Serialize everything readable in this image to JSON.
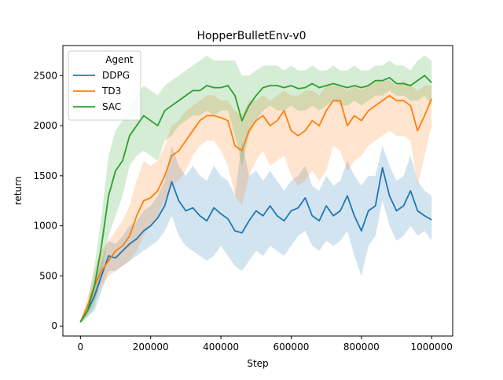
{
  "chart_data": {
    "type": "line",
    "title": "HopperBulletEnv-v0",
    "xlabel": "Step",
    "ylabel": "return",
    "xlim": [
      -50000,
      1060000
    ],
    "ylim": [
      -100,
      2800
    ],
    "x_ticks": [
      0,
      200000,
      400000,
      600000,
      800000,
      1000000
    ],
    "x_tick_labels": [
      "0",
      "200000",
      "400000",
      "600000",
      "800000",
      "1000000"
    ],
    "y_ticks": [
      0,
      500,
      1000,
      1500,
      2000,
      2500
    ],
    "y_tick_labels": [
      "0",
      "500",
      "1000",
      "1500",
      "2000",
      "2500"
    ],
    "grid": false,
    "legend": {
      "title": "Agent",
      "placement": "top-left"
    },
    "x": [
      0,
      20000,
      40000,
      60000,
      80000,
      100000,
      120000,
      140000,
      160000,
      180000,
      200000,
      220000,
      240000,
      260000,
      280000,
      300000,
      320000,
      340000,
      360000,
      380000,
      400000,
      420000,
      440000,
      460000,
      480000,
      500000,
      520000,
      540000,
      560000,
      580000,
      600000,
      620000,
      640000,
      660000,
      680000,
      700000,
      720000,
      740000,
      760000,
      780000,
      800000,
      820000,
      840000,
      860000,
      880000,
      900000,
      920000,
      940000,
      960000,
      980000,
      1000000
    ],
    "series": [
      {
        "name": "DDPG",
        "color": "#1f77b4",
        "values": [
          40,
          150,
          300,
          500,
          700,
          680,
          750,
          820,
          870,
          950,
          1000,
          1080,
          1200,
          1440,
          1250,
          1150,
          1180,
          1100,
          1050,
          1180,
          1120,
          1070,
          950,
          930,
          1050,
          1150,
          1100,
          1200,
          1100,
          1050,
          1150,
          1180,
          1280,
          1100,
          1050,
          1200,
          1100,
          1150,
          1300,
          1100,
          950,
          1150,
          1200,
          1580,
          1300,
          1150,
          1200,
          1350,
          1150,
          1100,
          1060
        ],
        "lower": [
          30,
          100,
          150,
          350,
          550,
          550,
          600,
          650,
          700,
          750,
          800,
          850,
          950,
          1100,
          900,
          800,
          750,
          700,
          650,
          700,
          800,
          700,
          600,
          550,
          650,
          750,
          700,
          800,
          750,
          700,
          800,
          900,
          950,
          800,
          750,
          850,
          800,
          850,
          950,
          700,
          500,
          800,
          900,
          1250,
          1000,
          850,
          900,
          1000,
          900,
          950,
          850
        ],
        "upper": [
          50,
          220,
          450,
          650,
          850,
          820,
          900,
          1000,
          1050,
          1150,
          1200,
          1300,
          1450,
          1800,
          1600,
          1500,
          1600,
          1500,
          1450,
          1600,
          1500,
          1450,
          1300,
          1850,
          1500,
          1550,
          1450,
          1550,
          1450,
          1350,
          1450,
          1500,
          1600,
          1400,
          1350,
          1500,
          1400,
          1450,
          1650,
          1500,
          1400,
          1500,
          1500,
          1800,
          1600,
          1450,
          1500,
          1700,
          1450,
          1350,
          1300
        ]
      },
      {
        "name": "TD3",
        "color": "#ff7f0e",
        "values": [
          40,
          200,
          400,
          550,
          650,
          750,
          800,
          900,
          1100,
          1250,
          1280,
          1350,
          1500,
          1700,
          1750,
          1850,
          1950,
          2050,
          2100,
          2100,
          2080,
          2050,
          1800,
          1750,
          1950,
          2050,
          2100,
          2000,
          2050,
          2150,
          1950,
          1900,
          1950,
          2050,
          2000,
          2150,
          2250,
          2250,
          2000,
          2100,
          2050,
          2150,
          2200,
          2250,
          2300,
          2250,
          2250,
          2200,
          1950,
          2100,
          2270
        ],
        "lower": [
          30,
          120,
          250,
          400,
          500,
          550,
          600,
          650,
          750,
          900,
          1000,
          1100,
          1250,
          1400,
          1450,
          1550,
          1700,
          1800,
          1850,
          1850,
          1750,
          1600,
          1300,
          1200,
          1500,
          1650,
          1750,
          1600,
          1650,
          1700,
          1500,
          1400,
          1450,
          1550,
          1450,
          1550,
          1800,
          1750,
          1550,
          1650,
          1700,
          1800,
          1850,
          1900,
          1950,
          1900,
          1900,
          1850,
          1400,
          1700,
          2000
        ],
        "upper": [
          50,
          280,
          550,
          750,
          850,
          950,
          1050,
          1200,
          1450,
          1650,
          1600,
          1650,
          1800,
          2000,
          2050,
          2150,
          2200,
          2250,
          2300,
          2300,
          2250,
          2250,
          2150,
          2100,
          2250,
          2250,
          2300,
          2250,
          2300,
          2350,
          2300,
          2300,
          2350,
          2350,
          2300,
          2400,
          2400,
          2400,
          2350,
          2400,
          2350,
          2400,
          2450,
          2450,
          2450,
          2400,
          2450,
          2400,
          2350,
          2400,
          2400
        ]
      },
      {
        "name": "SAC",
        "color": "#2ca02c",
        "values": [
          40,
          150,
          400,
          800,
          1300,
          1550,
          1650,
          1900,
          2000,
          2100,
          2050,
          2000,
          2150,
          2200,
          2250,
          2300,
          2350,
          2350,
          2400,
          2380,
          2380,
          2400,
          2300,
          2050,
          2200,
          2300,
          2380,
          2400,
          2400,
          2380,
          2400,
          2370,
          2380,
          2420,
          2380,
          2400,
          2420,
          2400,
          2380,
          2400,
          2380,
          2400,
          2450,
          2450,
          2480,
          2420,
          2420,
          2400,
          2450,
          2500,
          2430
        ],
        "lower": [
          30,
          80,
          200,
          500,
          900,
          1100,
          1300,
          1600,
          1700,
          1750,
          1700,
          1650,
          1850,
          1900,
          2000,
          2050,
          2100,
          2100,
          2150,
          2100,
          2150,
          2150,
          1900,
          1600,
          1900,
          2050,
          2150,
          2200,
          2150,
          2150,
          2200,
          2150,
          2150,
          2200,
          2150,
          2200,
          2250,
          2200,
          2200,
          2250,
          2200,
          2250,
          2300,
          2300,
          2350,
          2300,
          2300,
          2250,
          2250,
          2300,
          2200
        ],
        "upper": [
          50,
          220,
          600,
          1100,
          1700,
          1950,
          2050,
          2200,
          2300,
          2400,
          2350,
          2300,
          2400,
          2450,
          2500,
          2550,
          2600,
          2650,
          2700,
          2650,
          2650,
          2650,
          2650,
          2500,
          2500,
          2550,
          2600,
          2600,
          2600,
          2550,
          2600,
          2550,
          2550,
          2600,
          2550,
          2550,
          2600,
          2550,
          2550,
          2600,
          2550,
          2550,
          2600,
          2600,
          2650,
          2600,
          2600,
          2550,
          2650,
          2700,
          2650
        ]
      }
    ]
  }
}
